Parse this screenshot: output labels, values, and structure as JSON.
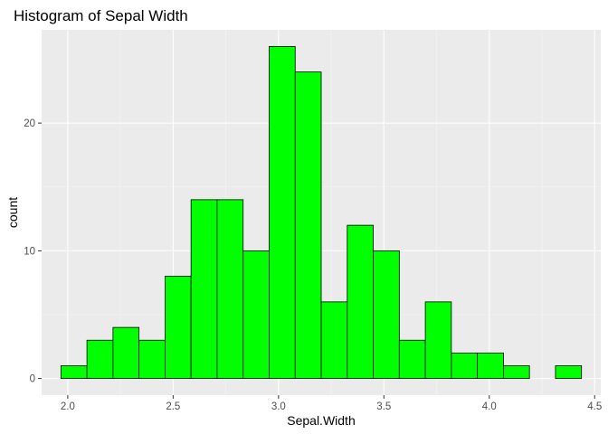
{
  "chart_data": {
    "type": "bar",
    "title": "Histogram of Sepal Width",
    "xlabel": "Sepal.Width",
    "ylabel": "count",
    "bin_width": 0.1235,
    "bins": [
      {
        "start": 1.9676,
        "end": 2.0911,
        "count": 1
      },
      {
        "start": 2.0911,
        "end": 2.2146,
        "count": 3
      },
      {
        "start": 2.2146,
        "end": 2.3381,
        "count": 4
      },
      {
        "start": 2.3381,
        "end": 2.4616,
        "count": 3
      },
      {
        "start": 2.4616,
        "end": 2.5851,
        "count": 8
      },
      {
        "start": 2.5851,
        "end": 2.7086,
        "count": 14
      },
      {
        "start": 2.7086,
        "end": 2.8321,
        "count": 14
      },
      {
        "start": 2.8321,
        "end": 2.9556,
        "count": 10
      },
      {
        "start": 2.9556,
        "end": 3.0791,
        "count": 26
      },
      {
        "start": 3.0791,
        "end": 3.2026,
        "count": 24
      },
      {
        "start": 3.2026,
        "end": 3.3261,
        "count": 6
      },
      {
        "start": 3.3261,
        "end": 3.4496,
        "count": 12
      },
      {
        "start": 3.4496,
        "end": 3.5731,
        "count": 10
      },
      {
        "start": 3.5731,
        "end": 3.6966,
        "count": 3
      },
      {
        "start": 3.6966,
        "end": 3.8201,
        "count": 6
      },
      {
        "start": 3.8201,
        "end": 3.9436,
        "count": 2
      },
      {
        "start": 3.9436,
        "end": 4.0671,
        "count": 2
      },
      {
        "start": 4.0671,
        "end": 4.1906,
        "count": 1
      },
      {
        "start": 4.1906,
        "end": 4.3141,
        "count": 0
      },
      {
        "start": 4.3141,
        "end": 4.4376,
        "count": 1
      }
    ],
    "xlim": [
      1.876,
      4.529
    ],
    "ylim": [
      -1.3,
      27.3
    ],
    "x_ticks": [
      2.0,
      2.5,
      3.0,
      3.5,
      4.0,
      4.5
    ],
    "x_tick_labels": [
      "2.0",
      "2.5",
      "3.0",
      "3.5",
      "4.0",
      "4.5"
    ],
    "y_ticks": [
      0,
      10,
      20
    ],
    "y_tick_labels": [
      "0",
      "10",
      "20"
    ],
    "grid": true,
    "legend": "none",
    "colors": {
      "bar_fill": "#00ff00",
      "bar_outline": "#000000",
      "panel_background": "#ebebeb",
      "grid_major": "#ffffff",
      "grid_minor": "#f5f5f5",
      "tick_text": "#4d4d4d"
    }
  }
}
